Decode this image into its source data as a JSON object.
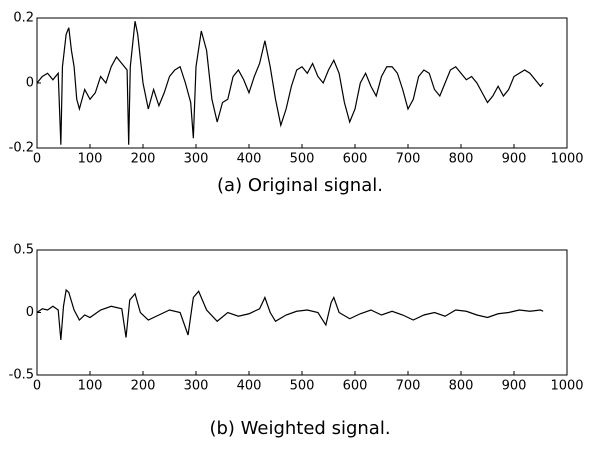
{
  "chart_data": [
    {
      "type": "line",
      "caption": "(a) Original signal.",
      "x": [
        0,
        10,
        20,
        30,
        40,
        45,
        48,
        55,
        60,
        65,
        70,
        75,
        80,
        90,
        100,
        110,
        120,
        130,
        140,
        150,
        160,
        170,
        173,
        176,
        185,
        190,
        200,
        210,
        220,
        230,
        240,
        250,
        260,
        270,
        280,
        290,
        295,
        300,
        310,
        320,
        330,
        340,
        350,
        360,
        370,
        380,
        390,
        400,
        410,
        420,
        430,
        440,
        450,
        460,
        470,
        480,
        490,
        500,
        510,
        520,
        530,
        540,
        550,
        560,
        570,
        580,
        590,
        600,
        610,
        620,
        630,
        640,
        650,
        660,
        670,
        680,
        690,
        700,
        710,
        720,
        730,
        740,
        750,
        760,
        770,
        780,
        790,
        800,
        810,
        820,
        830,
        840,
        850,
        860,
        870,
        880,
        890,
        900,
        910,
        920,
        930,
        940,
        950,
        955
      ],
      "series": [
        {
          "color": "#000000",
          "values": [
            0,
            0.02,
            0.03,
            0.01,
            0.03,
            -0.19,
            0.05,
            0.15,
            0.17,
            0.1,
            0.05,
            -0.05,
            -0.08,
            -0.02,
            -0.05,
            -0.03,
            0.02,
            0,
            0.05,
            0.08,
            0.06,
            0.04,
            -0.19,
            0.05,
            0.19,
            0.15,
            0,
            -0.08,
            -0.02,
            -0.07,
            -0.03,
            0.02,
            0.04,
            0.05,
            0,
            -0.06,
            -0.17,
            0.05,
            0.16,
            0.1,
            -0.05,
            -0.12,
            -0.06,
            -0.05,
            0.02,
            0.04,
            0.01,
            -0.03,
            0.02,
            0.06,
            0.13,
            0.05,
            -0.05,
            -0.13,
            -0.08,
            -0.01,
            0.04,
            0.05,
            0.03,
            0.06,
            0.02,
            0,
            0.04,
            0.07,
            0.03,
            -0.06,
            -0.12,
            -0.08,
            0,
            0.03,
            -0.01,
            -0.04,
            0.02,
            0.05,
            0.05,
            0.03,
            -0.02,
            -0.08,
            -0.05,
            0.02,
            0.04,
            0.03,
            -0.02,
            -0.04,
            0,
            0.04,
            0.05,
            0.03,
            0.01,
            0.02,
            0,
            -0.03,
            -0.06,
            -0.04,
            -0.01,
            -0.04,
            -0.02,
            0.02,
            0.03,
            0.04,
            0.03,
            0.01,
            -0.01,
            0
          ]
        }
      ],
      "xlim": [
        0,
        1000
      ],
      "xticks": [
        0,
        100,
        200,
        300,
        400,
        500,
        600,
        700,
        800,
        900,
        1000
      ],
      "ylim": [
        -0.2,
        0.2
      ],
      "yticks": [
        -0.2,
        0,
        0.2
      ]
    },
    {
      "type": "line",
      "caption": "(b) Weighted signal.",
      "x": [
        0,
        10,
        20,
        30,
        40,
        45,
        50,
        55,
        60,
        70,
        80,
        90,
        100,
        120,
        140,
        160,
        168,
        175,
        185,
        195,
        210,
        230,
        250,
        270,
        285,
        295,
        305,
        320,
        340,
        360,
        380,
        400,
        420,
        430,
        440,
        450,
        470,
        490,
        510,
        530,
        545,
        555,
        560,
        570,
        590,
        610,
        630,
        650,
        670,
        690,
        710,
        730,
        750,
        770,
        790,
        810,
        830,
        850,
        870,
        890,
        910,
        930,
        950,
        955
      ],
      "series": [
        {
          "color": "#000000",
          "values": [
            0,
            0.03,
            0.02,
            0.05,
            0.02,
            -0.22,
            0.05,
            0.18,
            0.16,
            0.02,
            -0.06,
            -0.02,
            -0.04,
            0.02,
            0.05,
            0.03,
            -0.2,
            0.1,
            0.15,
            0,
            -0.06,
            -0.02,
            0.02,
            0,
            -0.18,
            0.12,
            0.17,
            0.02,
            -0.07,
            0,
            -0.03,
            -0.01,
            0.03,
            0.12,
            0,
            -0.07,
            -0.02,
            0.01,
            0.02,
            0,
            -0.1,
            0.08,
            0.12,
            0,
            -0.05,
            -0.01,
            0.02,
            -0.02,
            0.01,
            -0.02,
            -0.06,
            -0.02,
            0,
            -0.03,
            0.02,
            0.01,
            -0.02,
            -0.04,
            -0.01,
            0,
            0.02,
            0.01,
            0.02,
            0.01
          ]
        }
      ],
      "xlim": [
        0,
        1000
      ],
      "xticks": [
        0,
        100,
        200,
        300,
        400,
        500,
        600,
        700,
        800,
        900,
        1000
      ],
      "ylim": [
        -0.5,
        0.5
      ],
      "yticks": [
        -0.5,
        0,
        0.5
      ]
    }
  ]
}
